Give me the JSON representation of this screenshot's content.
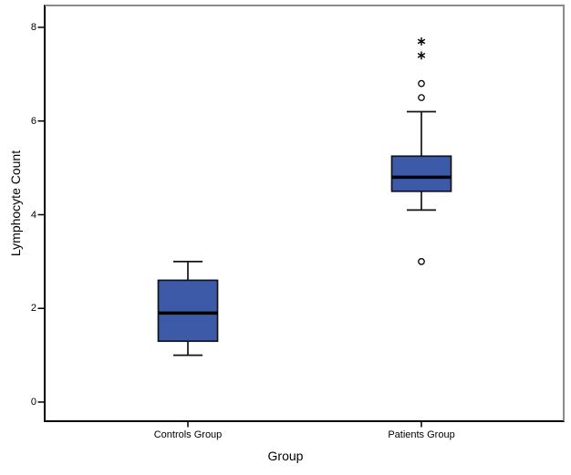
{
  "chart_data": {
    "type": "boxplot",
    "title": "",
    "xlabel": "Group",
    "ylabel": "Lymphocyte Count",
    "ylim": [
      -0.45,
      8.45
    ],
    "yticks": [
      0,
      2,
      4,
      6,
      8
    ],
    "grid": false,
    "legend": false,
    "categories": [
      "Controls Group",
      "Patients Group"
    ],
    "series": [
      {
        "name": "Controls Group",
        "whisker_low": 1.0,
        "q1": 1.3,
        "median": 1.9,
        "q3": 2.6,
        "whisker_high": 3.0,
        "outliers": [],
        "extreme_outliers": []
      },
      {
        "name": "Patients Group",
        "whisker_low": 4.1,
        "q1": 4.5,
        "median": 4.8,
        "q3": 5.25,
        "whisker_high": 6.2,
        "outliers": [
          6.8,
          6.5,
          3.0
        ],
        "extreme_outliers": [
          7.7,
          7.4
        ]
      }
    ],
    "colors": {
      "box_fill": "#3D5AA8",
      "box_border": "#141414",
      "median_line": "#000000",
      "whisker": "#141414",
      "outlier_marker": "#000000",
      "axis_line": "#000000",
      "frame_gray": "#8A8A8A",
      "text": "#000000",
      "background": "#FFFFFF"
    }
  }
}
